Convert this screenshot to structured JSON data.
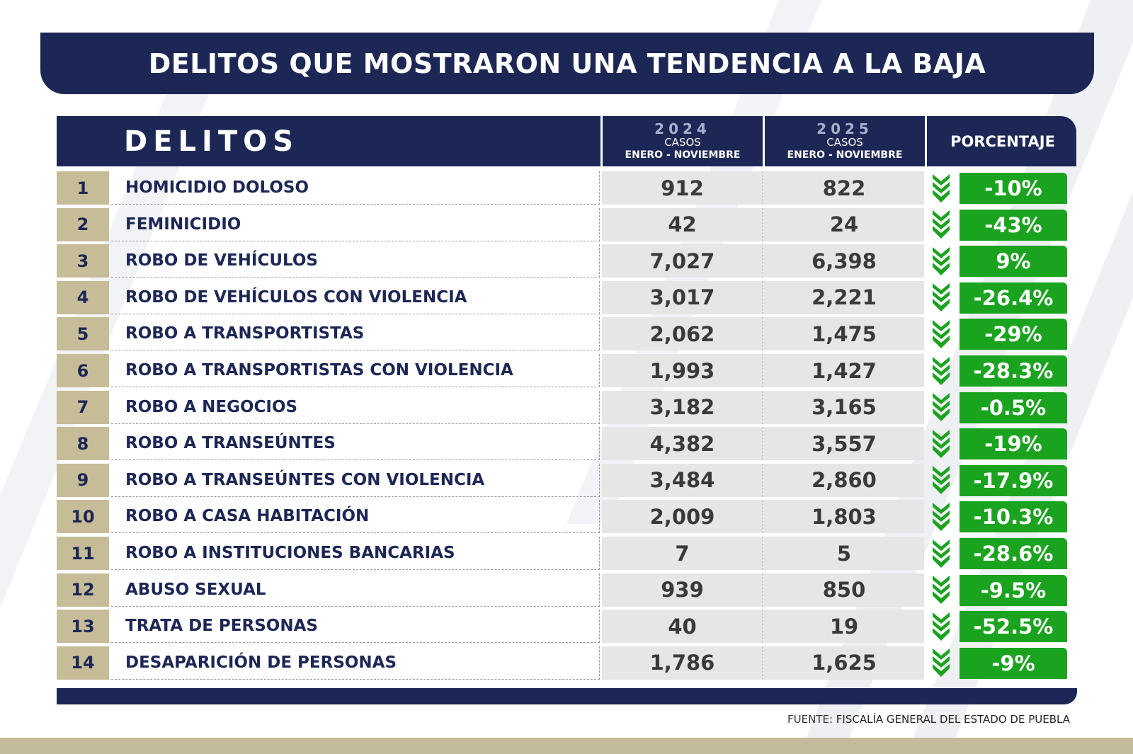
{
  "title": "DELITOS QUE MOSTRARON UNA TENDENCIA A LA BAJA",
  "header": {
    "delitos": "DELITOS",
    "col2024": {
      "year": "2024",
      "casos": "CASOS",
      "period": "ENERO - NOVIEMBRE"
    },
    "col2025": {
      "year": "2025",
      "casos": "CASOS",
      "period": "ENERO - NOVIEMBRE"
    },
    "porcentaje": "PORCENTAJE"
  },
  "rows": [
    {
      "n": "1",
      "delito": "HOMICIDIO DOLOSO",
      "y2024": "912",
      "y2025": "822",
      "pct": "-10%"
    },
    {
      "n": "2",
      "delito": "FEMINICIDIO",
      "y2024": "42",
      "y2025": "24",
      "pct": "-43%"
    },
    {
      "n": "3",
      "delito": "ROBO DE VEHÍCULOS",
      "y2024": "7,027",
      "y2025": "6,398",
      "pct": "9%"
    },
    {
      "n": "4",
      "delito": "ROBO DE VEHÍCULOS CON VIOLENCIA",
      "y2024": "3,017",
      "y2025": "2,221",
      "pct": "-26.4%"
    },
    {
      "n": "5",
      "delito": "ROBO A TRANSPORTISTAS",
      "y2024": "2,062",
      "y2025": "1,475",
      "pct": "-29%"
    },
    {
      "n": "6",
      "delito": "ROBO A TRANSPORTISTAS CON VIOLENCIA",
      "y2024": "1,993",
      "y2025": "1,427",
      "pct": "-28.3%"
    },
    {
      "n": "7",
      "delito": "ROBO A NEGOCIOS",
      "y2024": "3,182",
      "y2025": "3,165",
      "pct": "-0.5%"
    },
    {
      "n": "8",
      "delito": "ROBO A TRANSEÚNTES",
      "y2024": "4,382",
      "y2025": "3,557",
      "pct": "-19%"
    },
    {
      "n": "9",
      "delito": "ROBO A TRANSEÚNTES CON VIOLENCIA",
      "y2024": "3,484",
      "y2025": "2,860",
      "pct": "-17.9%"
    },
    {
      "n": "10",
      "delito": "ROBO A CASA HABITACIÓN",
      "y2024": "2,009",
      "y2025": "1,803",
      "pct": "-10.3%"
    },
    {
      "n": "11",
      "delito": "ROBO A INSTITUCIONES BANCARIAS",
      "y2024": "7",
      "y2025": "5",
      "pct": "-28.6%"
    },
    {
      "n": "12",
      "delito": "ABUSO SEXUAL",
      "y2024": "939",
      "y2025": "850",
      "pct": "-9.5%"
    },
    {
      "n": "13",
      "delito": "TRATA DE PERSONAS",
      "y2024": "40",
      "y2025": "19",
      "pct": "-52.5%"
    },
    {
      "n": "14",
      "delito": "DESAPARICIÓN DE PERSONAS",
      "y2024": "1,786",
      "y2025": "1,625",
      "pct": "-9%"
    }
  ],
  "trend_icon": "double-chevron-down-icon",
  "source": {
    "label": "FUENTE:",
    "value": "FISCALÍA GENERAL DEL ESTADO DE PUEBLA"
  },
  "colors": {
    "navy": "#1d2755",
    "gold": "#c6bc98",
    "green": "#1aa31f"
  }
}
